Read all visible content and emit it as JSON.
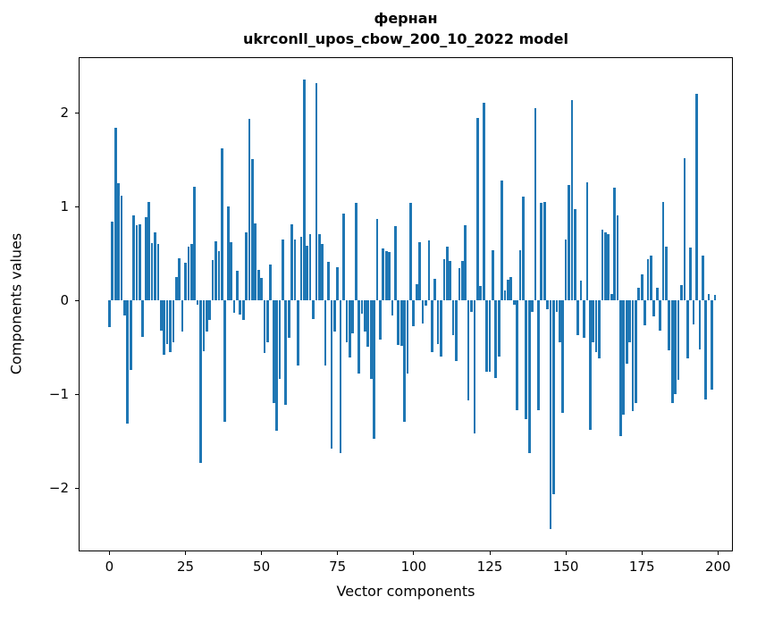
{
  "figure": {
    "title_line1": "фернан",
    "title_line2": "ukrconll_upos_cbow_200_10_2022 model"
  },
  "chart_data": {
    "type": "bar",
    "title": "фернан",
    "subtitle": "ukrconll_upos_cbow_200_10_2022 model",
    "xlabel": "Vector components",
    "ylabel": "Components values",
    "x_start": 0,
    "bar_color": "#1f77b4",
    "bar_width_units": 0.8,
    "grid": false,
    "legend": "none",
    "xlim": [
      -10.1,
      204.9
    ],
    "ylim": [
      -2.676,
      2.59
    ],
    "xticks": [
      {
        "v": 0,
        "label": "0"
      },
      {
        "v": 25,
        "label": "25"
      },
      {
        "v": 50,
        "label": "50"
      },
      {
        "v": 75,
        "label": "75"
      },
      {
        "v": 100,
        "label": "100"
      },
      {
        "v": 125,
        "label": "125"
      },
      {
        "v": 150,
        "label": "150"
      },
      {
        "v": 175,
        "label": "175"
      },
      {
        "v": 200,
        "label": "200"
      }
    ],
    "yticks": [
      {
        "v": 2,
        "label": "2"
      },
      {
        "v": 1,
        "label": "1"
      },
      {
        "v": 0,
        "label": "0"
      },
      {
        "v": -1,
        "label": "−1"
      },
      {
        "v": -2,
        "label": "−2"
      }
    ],
    "values": [
      -0.29,
      0.84,
      1.84,
      1.25,
      1.11,
      -0.16,
      -1.31,
      -0.74,
      0.9,
      0.8,
      0.81,
      -0.39,
      0.89,
      1.05,
      0.61,
      0.72,
      0.6,
      -0.32,
      -0.58,
      -0.47,
      -0.55,
      -0.45,
      0.25,
      0.45,
      -0.33,
      0.4,
      0.57,
      0.6,
      1.21,
      -0.05,
      -1.73,
      -0.54,
      -0.33,
      -0.21,
      0.43,
      0.63,
      0.52,
      1.62,
      -1.3,
      1.0,
      0.62,
      -0.13,
      0.31,
      -0.15,
      -0.21,
      0.72,
      1.93,
      1.5,
      0.82,
      0.32,
      0.24,
      -0.56,
      -0.45,
      0.38,
      -1.1,
      -1.39,
      -0.84,
      0.65,
      -1.11,
      -0.4,
      0.81,
      0.65,
      -0.7,
      0.68,
      2.35,
      0.58,
      0.7,
      -0.2,
      2.31,
      0.7,
      0.6,
      -0.7,
      0.41,
      -1.58,
      -0.33,
      0.35,
      -1.63,
      0.92,
      -0.45,
      -0.61,
      -0.35,
      1.04,
      -0.78,
      -0.14,
      -0.33,
      -0.5,
      -0.84,
      -1.48,
      0.87,
      -0.42,
      0.55,
      0.52,
      0.51,
      -0.16,
      0.79,
      -0.48,
      -0.49,
      -1.3,
      -0.78,
      1.04,
      -0.28,
      0.17,
      0.62,
      -0.25,
      -0.06,
      0.64,
      -0.55,
      0.23,
      -0.47,
      -0.6,
      0.44,
      0.57,
      0.42,
      -0.37,
      -0.65,
      0.34,
      0.42,
      0.8,
      -1.07,
      -0.12,
      -1.42,
      1.94,
      0.15,
      2.1,
      -0.76,
      -0.76,
      0.53,
      -0.83,
      -0.6,
      1.28,
      0.1,
      0.22,
      0.25,
      -0.05,
      -1.17,
      0.53,
      1.1,
      -1.27,
      -1.63,
      -0.12,
      2.05,
      -1.17,
      1.04,
      1.05,
      -0.1,
      -2.44,
      -2.07,
      -0.12,
      -0.45,
      -1.2,
      0.65,
      1.23,
      2.13,
      0.97,
      -0.37,
      0.21,
      -0.4,
      1.26,
      -1.38,
      -0.45,
      -0.55,
      -0.62,
      0.75,
      0.72,
      0.7,
      0.07,
      1.2,
      0.9,
      -1.45,
      -1.22,
      -0.68,
      -0.45,
      -1.18,
      -1.1,
      0.13,
      0.28,
      -0.27,
      0.44,
      0.48,
      -0.17,
      0.13,
      -0.32,
      1.05,
      0.57,
      -0.53,
      -1.1,
      -1.0,
      -0.85,
      0.16,
      1.51,
      -0.62,
      0.56,
      -0.26,
      2.2,
      -0.52,
      0.48,
      -1.06,
      0.07,
      -0.95,
      0.06
    ]
  }
}
